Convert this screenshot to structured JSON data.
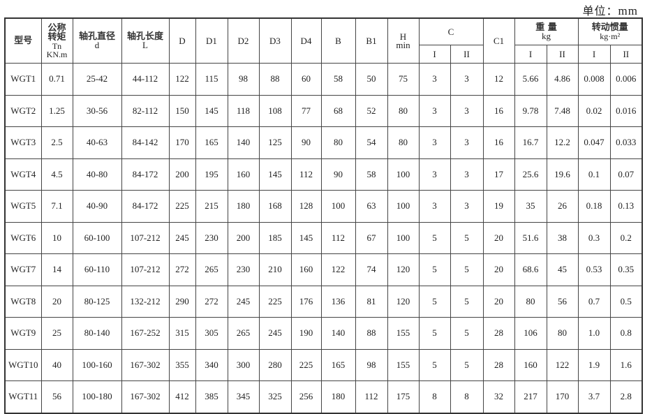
{
  "unit_label": "单位：",
  "unit_value": "mm",
  "headers": {
    "model": "型号",
    "torque_zh1": "公称",
    "torque_zh2": "转矩",
    "torque_sym": "Tn",
    "torque_unit": "KN.m",
    "bore_d_zh": "轴孔直径",
    "bore_d_sym": "d",
    "bore_l_zh": "轴孔长度",
    "bore_l_sym": "L",
    "D": "D",
    "D1": "D1",
    "D2": "D2",
    "D3": "D3",
    "D4": "D4",
    "B": "B",
    "B1": "B1",
    "H": "H",
    "H_sub": "min",
    "C": "C",
    "C1": "C1",
    "weight_zh": "重 量",
    "weight_unit": "kg",
    "inertia_zh": "转动惯量",
    "inertia_unit": "kg·m²",
    "sub_I": "I",
    "sub_II": "II"
  },
  "rows": [
    [
      "WGT1",
      "0.71",
      "25-42",
      "44-112",
      "122",
      "115",
      "98",
      "88",
      "60",
      "58",
      "50",
      "75",
      "3",
      "3",
      "12",
      "5.66",
      "4.86",
      "0.008",
      "0.006"
    ],
    [
      "WGT2",
      "1.25",
      "30-56",
      "82-112",
      "150",
      "145",
      "118",
      "108",
      "77",
      "68",
      "52",
      "80",
      "3",
      "3",
      "16",
      "9.78",
      "7.48",
      "0.02",
      "0.016"
    ],
    [
      "WGT3",
      "2.5",
      "40-63",
      "84-142",
      "170",
      "165",
      "140",
      "125",
      "90",
      "80",
      "54",
      "80",
      "3",
      "3",
      "16",
      "16.7",
      "12.2",
      "0.047",
      "0.033"
    ],
    [
      "WGT4",
      "4.5",
      "40-80",
      "84-172",
      "200",
      "195",
      "160",
      "145",
      "112",
      "90",
      "58",
      "100",
      "3",
      "3",
      "17",
      "25.6",
      "19.6",
      "0.1",
      "0.07"
    ],
    [
      "WGT5",
      "7.1",
      "40-90",
      "84-172",
      "225",
      "215",
      "180",
      "168",
      "128",
      "100",
      "63",
      "100",
      "3",
      "3",
      "19",
      "35",
      "26",
      "0.18",
      "0.13"
    ],
    [
      "WGT6",
      "10",
      "60-100",
      "107-212",
      "245",
      "230",
      "200",
      "185",
      "145",
      "112",
      "67",
      "100",
      "5",
      "5",
      "20",
      "51.6",
      "38",
      "0.3",
      "0.2"
    ],
    [
      "WGT7",
      "14",
      "60-110",
      "107-212",
      "272",
      "265",
      "230",
      "210",
      "160",
      "122",
      "74",
      "120",
      "5",
      "5",
      "20",
      "68.6",
      "45",
      "0.53",
      "0.35"
    ],
    [
      "WGT8",
      "20",
      "80-125",
      "132-212",
      "290",
      "272",
      "245",
      "225",
      "176",
      "136",
      "81",
      "120",
      "5",
      "5",
      "20",
      "80",
      "56",
      "0.7",
      "0.5"
    ],
    [
      "WGT9",
      "25",
      "80-140",
      "167-252",
      "315",
      "305",
      "265",
      "245",
      "190",
      "140",
      "88",
      "155",
      "5",
      "5",
      "28",
      "106",
      "80",
      "1.0",
      "0.8"
    ],
    [
      "WGT10",
      "40",
      "100-160",
      "167-302",
      "355",
      "340",
      "300",
      "280",
      "225",
      "165",
      "98",
      "155",
      "5",
      "5",
      "28",
      "160",
      "122",
      "1.9",
      "1.6"
    ],
    [
      "WGT11",
      "56",
      "100-180",
      "167-302",
      "412",
      "385",
      "345",
      "325",
      "256",
      "180",
      "112",
      "175",
      "8",
      "8",
      "32",
      "217",
      "170",
      "3.7",
      "2.8"
    ]
  ]
}
